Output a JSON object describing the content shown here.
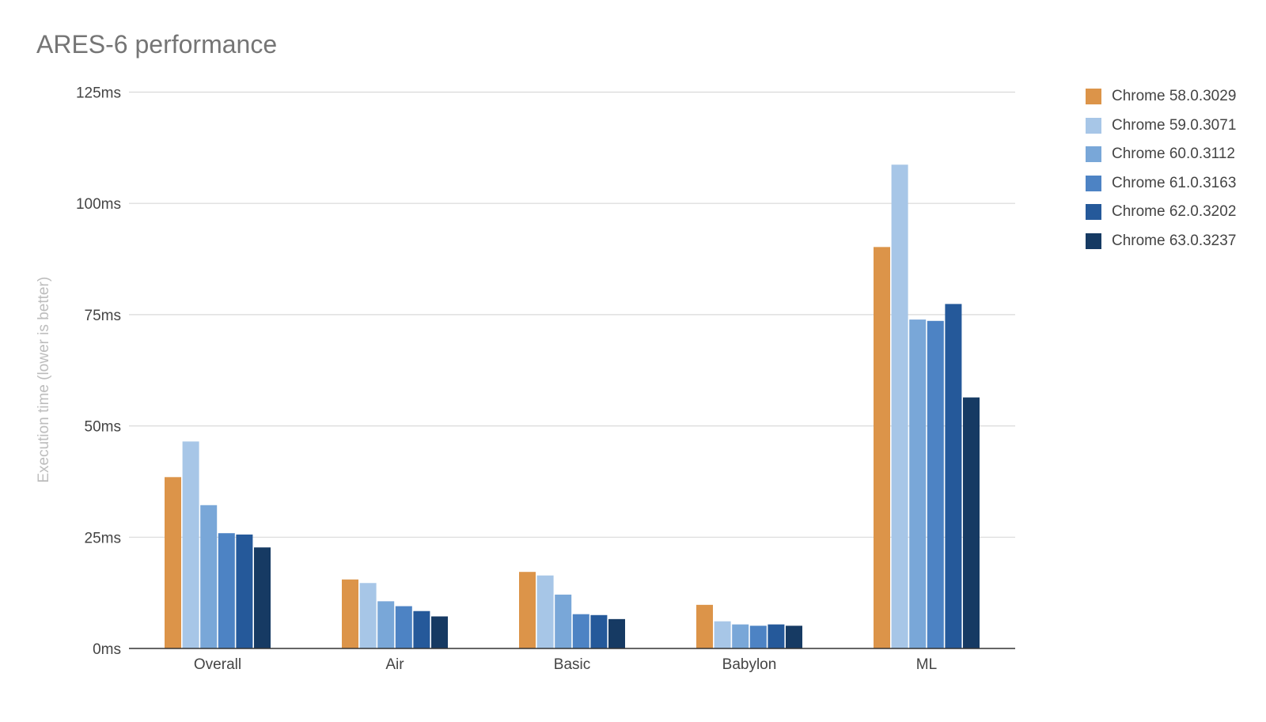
{
  "chart_data": {
    "type": "bar",
    "title": "ARES-6 performance",
    "ylabel": "Execution time (lower is better)",
    "xlabel": "",
    "ylim": [
      0,
      125
    ],
    "yticks": [
      0,
      25,
      50,
      75,
      100,
      125
    ],
    "ytick_labels": [
      "0ms",
      "25ms",
      "50ms",
      "75ms",
      "100ms",
      "125ms"
    ],
    "categories": [
      "Overall",
      "Air",
      "Basic",
      "Babylon",
      "ML"
    ],
    "grid": true,
    "legend_position": "right",
    "series": [
      {
        "name": "Chrome 58.0.3029",
        "color": "#DC9449",
        "values": [
          38.5,
          15.5,
          17.2,
          9.8,
          90.2
        ]
      },
      {
        "name": "Chrome 59.0.3071",
        "color": "#A7C6E7",
        "values": [
          46.5,
          14.7,
          16.4,
          6.1,
          108.7
        ]
      },
      {
        "name": "Chrome 60.0.3112",
        "color": "#79A7D8",
        "values": [
          32.2,
          10.6,
          12.1,
          5.4,
          73.9
        ]
      },
      {
        "name": "Chrome 61.0.3163",
        "color": "#4D83C4",
        "values": [
          25.9,
          9.5,
          7.7,
          5.1,
          73.6
        ]
      },
      {
        "name": "Chrome 62.0.3202",
        "color": "#25599A",
        "values": [
          25.6,
          8.4,
          7.5,
          5.4,
          77.4
        ]
      },
      {
        "name": "Chrome 63.0.3237",
        "color": "#163A63",
        "values": [
          22.7,
          7.2,
          6.6,
          5.1,
          56.4
        ]
      }
    ]
  }
}
